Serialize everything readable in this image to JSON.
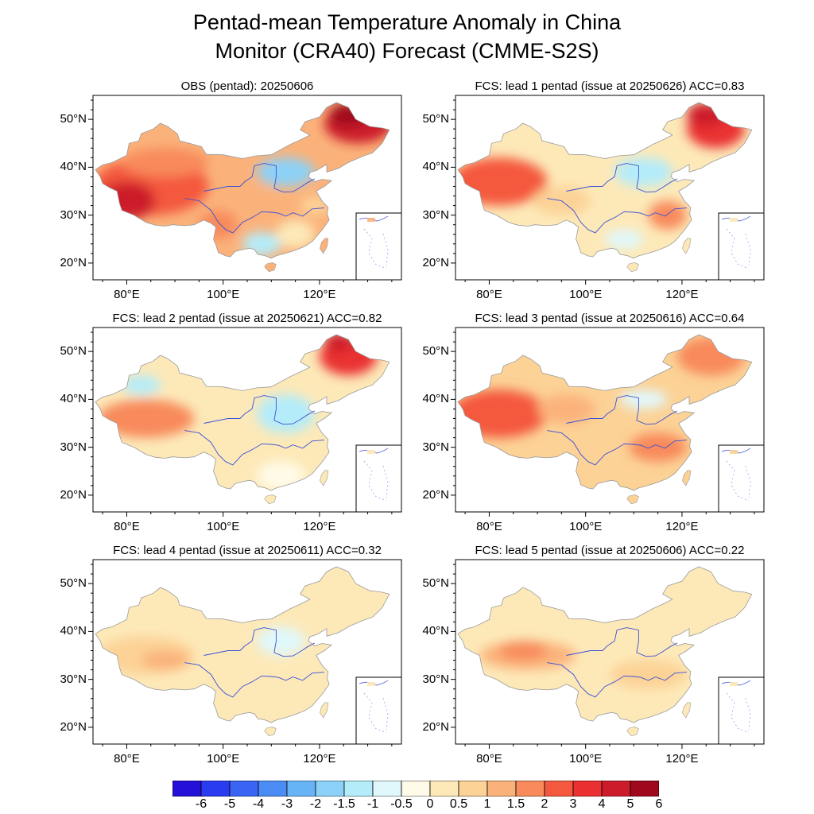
{
  "figure": {
    "title_line1": "Pentad-mean Temperature Anomaly in China",
    "title_line2": "Monitor (CRA40)  Forecast (CMME-S2S)"
  },
  "axes": {
    "lat_labels": [
      "50°N",
      "40°N",
      "30°N",
      "20°N"
    ],
    "lon_labels": [
      "80°E",
      "100°E",
      "120°E"
    ]
  },
  "panels": [
    {
      "title": "OBS (pentad): 20250606",
      "pattern": "obs"
    },
    {
      "title": "FCS: lead 1 pentad (issue at 20250626) ACC=0.83",
      "pattern": "lead1"
    },
    {
      "title": "FCS: lead 2 pentad (issue at 20250621) ACC=0.82",
      "pattern": "lead2"
    },
    {
      "title": "FCS: lead 3 pentad (issue at 20250616) ACC=0.64",
      "pattern": "lead3"
    },
    {
      "title": "FCS: lead 4 pentad (issue at 20250611) ACC=0.32",
      "pattern": "lead4"
    },
    {
      "title": "FCS: lead 5 pentad (issue at 20250606) ACC=0.22",
      "pattern": "lead5"
    }
  ],
  "colorbar": {
    "labels": [
      "-6",
      "-5",
      "-4",
      "-3",
      "-2",
      "-1.5",
      "-1",
      "-0.5",
      "0",
      "0.5",
      "1",
      "1.5",
      "2",
      "3",
      "4",
      "5",
      "6"
    ],
    "colors": [
      "#2410d8",
      "#2a3cf0",
      "#3a64f4",
      "#4a8cf4",
      "#66b4f6",
      "#8cd2f8",
      "#b4ecfa",
      "#e0f8fc",
      "#fffbe8",
      "#fde9b8",
      "#fcd296",
      "#fbb27a",
      "#f88a5c",
      "#f4583e",
      "#ea3030",
      "#cc1c2c",
      "#a0081e"
    ]
  }
}
